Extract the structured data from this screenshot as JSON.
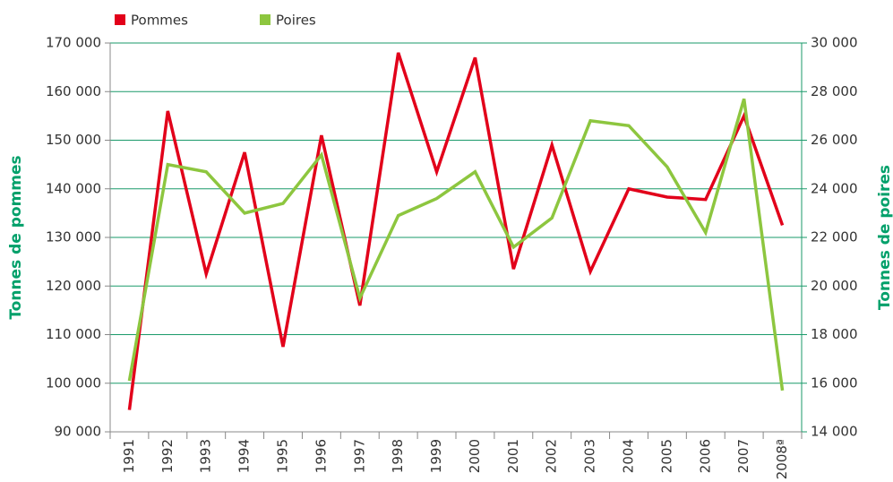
{
  "chart_data": {
    "type": "line",
    "categories": [
      "1991",
      "1992",
      "1993",
      "1994",
      "1995",
      "1996",
      "1997",
      "1998",
      "1999",
      "2000",
      "2001",
      "2002",
      "2003",
      "2004",
      "2005",
      "2006",
      "2007",
      "2008ª"
    ],
    "series": [
      {
        "name": "Pommes",
        "color": "#e2001a",
        "values": [
          94500,
          156000,
          122500,
          147500,
          107500,
          151000,
          116000,
          168000,
          143500,
          167000,
          123500,
          149000,
          123000,
          140000,
          138300,
          137800,
          155000,
          132500
        ]
      },
      {
        "name": "Poires",
        "color": "#8dc63f",
        "axis": "y2",
        "values": [
          16100,
          25000,
          24700,
          23000,
          23400,
          25400,
          19500,
          22900,
          23600,
          24700,
          21600,
          22800,
          26800,
          26600,
          24900,
          22200,
          27700,
          15700
        ]
      }
    ],
    "y_label": "Tonnes de pommes",
    "y2_label": "Tonnes de poires",
    "ylim": [
      90000,
      170000
    ],
    "yticks": [
      {
        "value": 90000,
        "label": "90 000"
      },
      {
        "value": 100000,
        "label": "100 000"
      },
      {
        "value": 110000,
        "label": "110 000"
      },
      {
        "value": 120000,
        "label": "120 000"
      },
      {
        "value": 130000,
        "label": "130 000"
      },
      {
        "value": 140000,
        "label": "140 000"
      },
      {
        "value": 150000,
        "label": "150 000"
      },
      {
        "value": 160000,
        "label": "160 000"
      },
      {
        "value": 170000,
        "label": "170 000"
      }
    ],
    "y2lim": [
      14000,
      30000
    ],
    "y2ticks": [
      {
        "value": 14000,
        "label": "14 000"
      },
      {
        "value": 16000,
        "label": "16 000"
      },
      {
        "value": 18000,
        "label": "18 000"
      },
      {
        "value": 20000,
        "label": "20 000"
      },
      {
        "value": 22000,
        "label": "22 000"
      },
      {
        "value": 24000,
        "label": "24 000"
      },
      {
        "value": 26000,
        "label": "26 000"
      },
      {
        "value": 28000,
        "label": "28 000"
      },
      {
        "value": 30000,
        "label": "30 000"
      }
    ],
    "grid": true
  }
}
